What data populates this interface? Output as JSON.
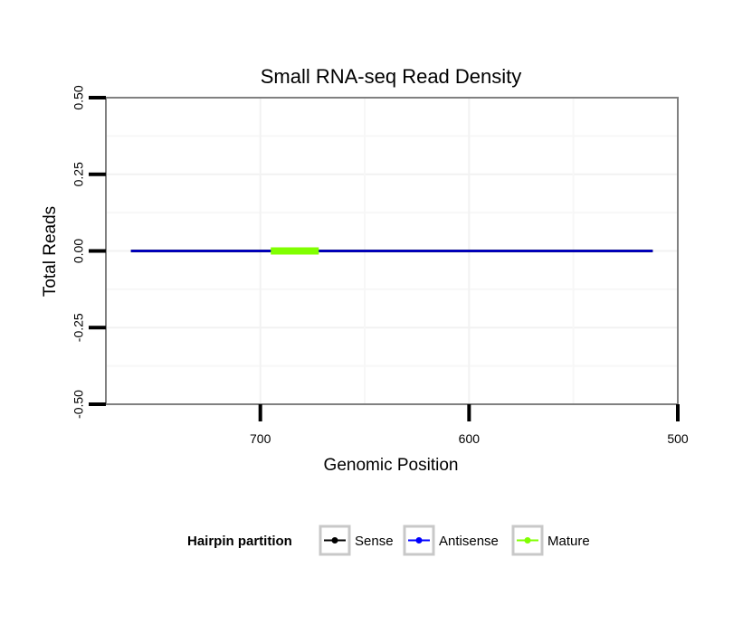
{
  "chart_data": {
    "type": "line",
    "title": "Small RNA-seq Read Density",
    "xlabel": "Genomic Position",
    "ylabel": "Total Reads",
    "xlim": [
      774,
      500
    ],
    "x_reversed": true,
    "ylim": [
      -0.5,
      0.5
    ],
    "x_ticks": [
      700,
      600,
      500
    ],
    "x_tick_labels": [
      "700",
      "600",
      "500"
    ],
    "y_ticks": [
      -0.5,
      -0.25,
      0,
      0.25,
      0.5
    ],
    "y_tick_labels": [
      "-0.50",
      "-0.25",
      "0.00",
      "0.25",
      "0.50"
    ],
    "grid": true,
    "legend": {
      "title": "Hairpin partition",
      "position": "bottom",
      "entries": [
        {
          "name": "Sense",
          "color": "#000000"
        },
        {
          "name": "Antisense",
          "color": "#0000ff"
        },
        {
          "name": "Mature",
          "color": "#80ff00"
        }
      ]
    },
    "series": [
      {
        "name": "Sense",
        "color": "#000000",
        "x": [
          762,
          512
        ],
        "y": [
          0,
          0
        ]
      },
      {
        "name": "Antisense",
        "color": "#0000ff",
        "x": [
          762,
          512
        ],
        "y": [
          0,
          0
        ]
      },
      {
        "name": "Mature",
        "color": "#80ff00",
        "x": [
          695,
          672
        ],
        "y": [
          0,
          0
        ]
      }
    ]
  }
}
